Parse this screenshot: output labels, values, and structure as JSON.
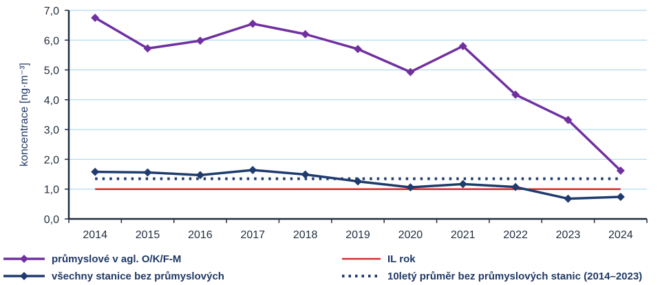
{
  "chart_data": {
    "type": "line",
    "title": "",
    "xlabel": "",
    "ylabel": "koncentrace [ng·m⁻³]",
    "categories": [
      "2014",
      "2015",
      "2016",
      "2017",
      "2018",
      "2019",
      "2020",
      "2021",
      "2022",
      "2023",
      "2024"
    ],
    "y_ticks": [
      "0,0",
      "1,0",
      "2,0",
      "3,0",
      "4,0",
      "5,0",
      "6,0",
      "7,0"
    ],
    "ylim": [
      0,
      7
    ],
    "grid": "horizontal",
    "legend_position": "bottom",
    "series": [
      {
        "name": "průmyslové v agl. O/K/F-M",
        "color": "#7030a0",
        "style": "line-diamond",
        "values": [
          6.75,
          5.72,
          5.98,
          6.55,
          6.2,
          5.7,
          4.93,
          5.8,
          4.17,
          3.32,
          1.62
        ]
      },
      {
        "name": "všechny stanice bez průmyslových",
        "color": "#1f3c6e",
        "style": "line-diamond",
        "values": [
          1.58,
          1.56,
          1.47,
          1.64,
          1.49,
          1.26,
          1.06,
          1.17,
          1.07,
          0.68,
          0.74
        ]
      },
      {
        "name": "IL rok",
        "color": "#d42a2a",
        "style": "line",
        "values": [
          1.0,
          1.0,
          1.0,
          1.0,
          1.0,
          1.0,
          1.0,
          1.0,
          1.0,
          1.0,
          1.0
        ]
      },
      {
        "name": "10letý průměr bez průmyslových  stanic (2014–2023)",
        "color": "#1f3c6e",
        "style": "dotted",
        "values": [
          1.35,
          1.35,
          1.35,
          1.35,
          1.35,
          1.35,
          1.35,
          1.35,
          1.35,
          1.35,
          1.35
        ]
      }
    ]
  }
}
